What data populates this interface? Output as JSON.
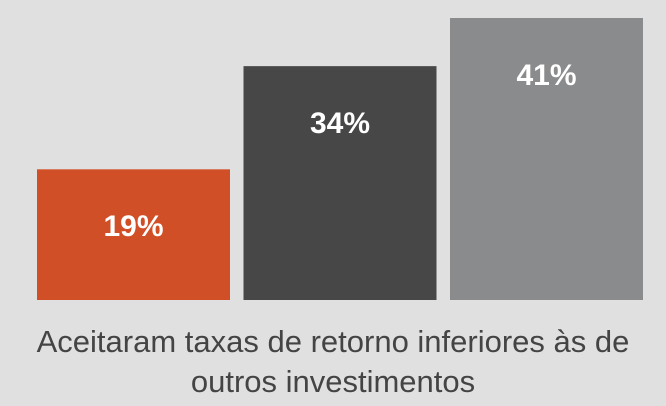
{
  "chart_data": {
    "type": "bar",
    "categories": [
      null,
      null,
      null
    ],
    "values": [
      19,
      34,
      41
    ],
    "value_labels": [
      "19%",
      "34%",
      "41%"
    ],
    "colors": [
      "#d04f27",
      "#474747",
      "#8a8b8c"
    ],
    "xlabel": "Aceitaram taxas de retorno inferiores às de outros investimentos",
    "ylim": [
      0,
      41
    ]
  }
}
